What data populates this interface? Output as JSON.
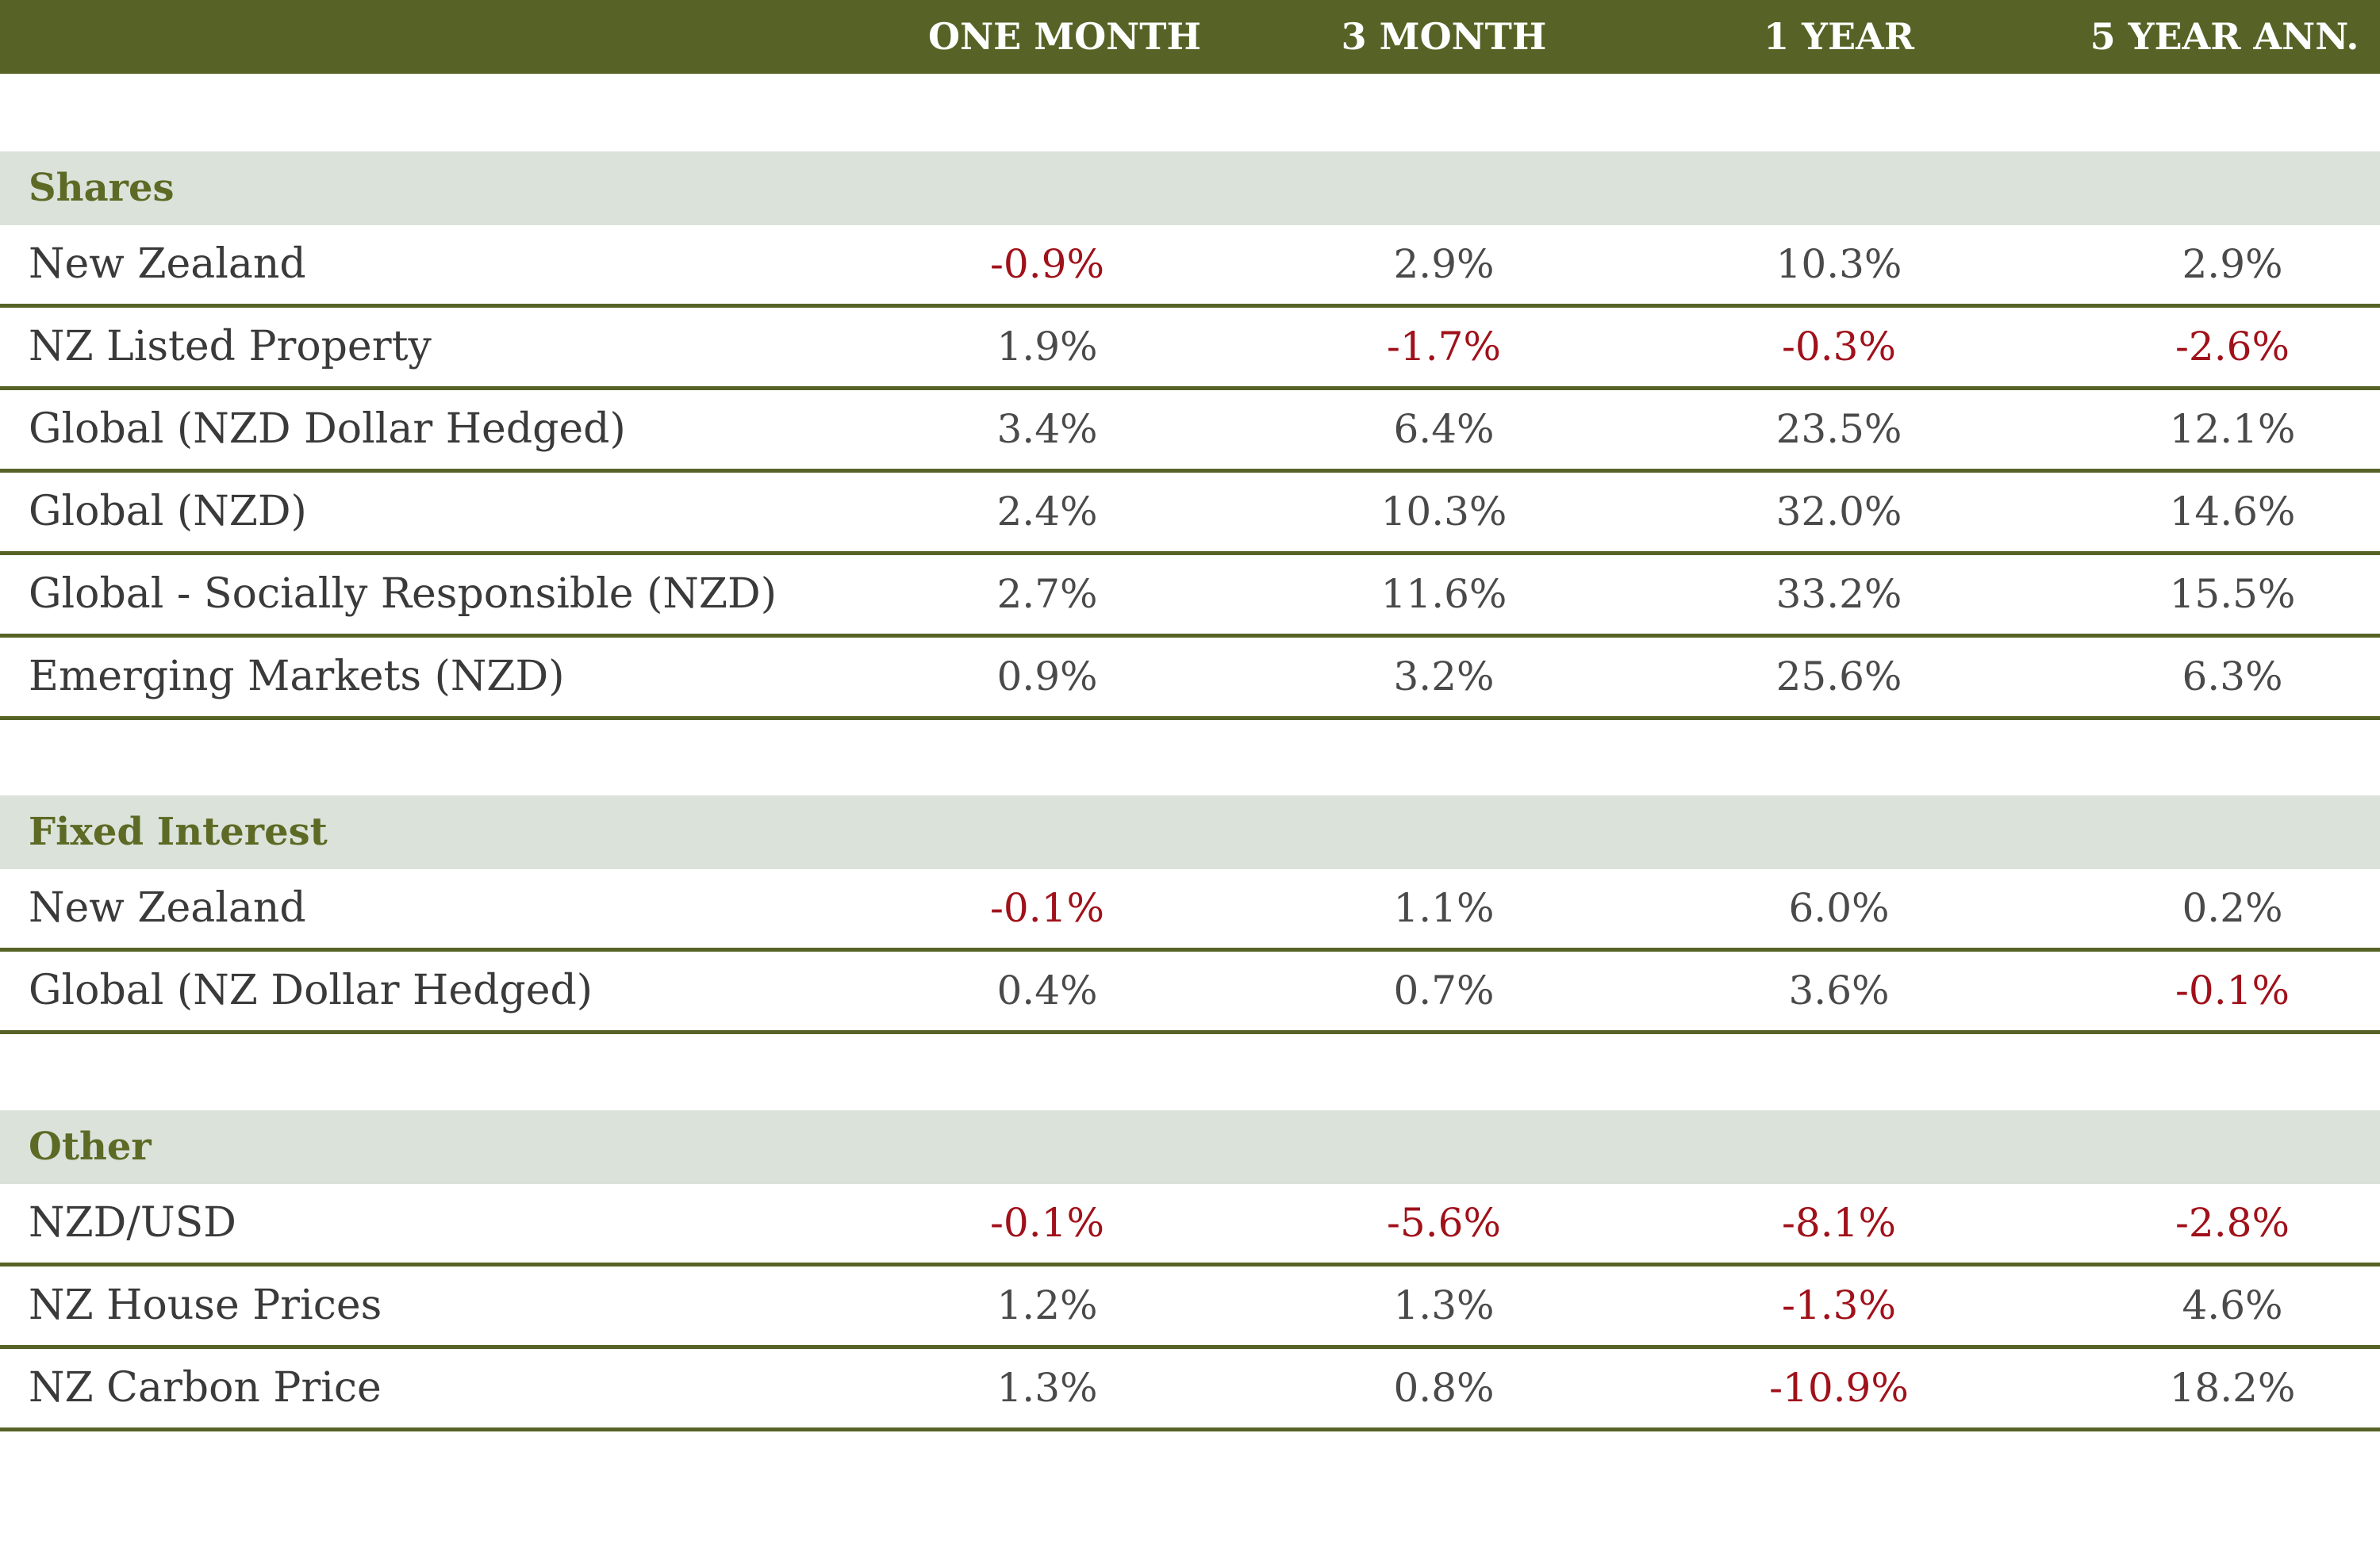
{
  "chart_data": {
    "type": "table",
    "columns": [
      "",
      "ONE MONTH",
      "3 MONTH",
      "1 YEAR",
      "5 YEAR ANN."
    ],
    "sections": [
      {
        "name": "Shares",
        "rows": [
          {
            "label": "New Zealand",
            "values": [
              "-0.9%",
              "2.9%",
              "10.3%",
              "2.9%"
            ]
          },
          {
            "label": "NZ Listed Property",
            "values": [
              "1.9%",
              "-1.7%",
              "-0.3%",
              "-2.6%"
            ]
          },
          {
            "label": "Global (NZD Dollar Hedged)",
            "values": [
              "3.4%",
              "6.4%",
              "23.5%",
              "12.1%"
            ]
          },
          {
            "label": "Global (NZD)",
            "values": [
              "2.4%",
              "10.3%",
              "32.0%",
              "14.6%"
            ]
          },
          {
            "label": "Global - Socially Responsible (NZD)",
            "values": [
              "2.7%",
              "11.6%",
              "33.2%",
              "15.5%"
            ]
          },
          {
            "label": "Emerging Markets (NZD)",
            "values": [
              "0.9%",
              "3.2%",
              "25.6%",
              "6.3%"
            ]
          }
        ]
      },
      {
        "name": "Fixed Interest",
        "rows": [
          {
            "label": "New Zealand",
            "values": [
              "-0.1%",
              "1.1%",
              "6.0%",
              "0.2%"
            ]
          },
          {
            "label": "Global (NZ Dollar Hedged)",
            "values": [
              "0.4%",
              "0.7%",
              "3.6%",
              "-0.1%"
            ]
          }
        ]
      },
      {
        "name": "Other",
        "rows": [
          {
            "label": "NZD/USD",
            "values": [
              "-0.1%",
              "-5.6%",
              "-8.1%",
              "-2.8%"
            ]
          },
          {
            "label": "NZ House Prices",
            "values": [
              "1.2%",
              "1.3%",
              "-1.3%",
              "4.6%"
            ]
          },
          {
            "label": "NZ Carbon Price",
            "values": [
              "1.3%",
              "0.8%",
              "-10.9%",
              "18.2%"
            ]
          }
        ]
      }
    ]
  },
  "colors": {
    "header_bg": "#576326",
    "section_bg": "#dbe2da",
    "section_text": "#5d6a25",
    "negative": "#a0111a",
    "text": "#3a3a3a"
  }
}
